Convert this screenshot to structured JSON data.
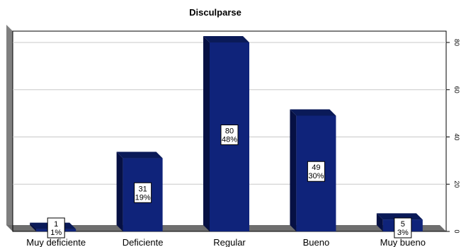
{
  "chart_data": {
    "type": "bar",
    "title": "Disculparse",
    "categories": [
      "Muy deficiente",
      "Deficiente",
      "Regular",
      "Bueno",
      "Muy bueno"
    ],
    "values": [
      1,
      31,
      80,
      49,
      5
    ],
    "percent_labels": [
      "1%",
      "19%",
      "48%",
      "30%",
      "3%"
    ],
    "ylim": [
      0,
      80
    ],
    "yticks": [
      0,
      20,
      40,
      60,
      80
    ],
    "y_axis_side": "right",
    "grid": true,
    "legend": "none",
    "style": "3d",
    "colors": {
      "bar_front": "#0f237a",
      "bar_side": "#061043",
      "bar_top": "#0a1a58",
      "wall": "#808080",
      "floor": "#6e6e6e",
      "grid": "#c8c8c8"
    }
  }
}
